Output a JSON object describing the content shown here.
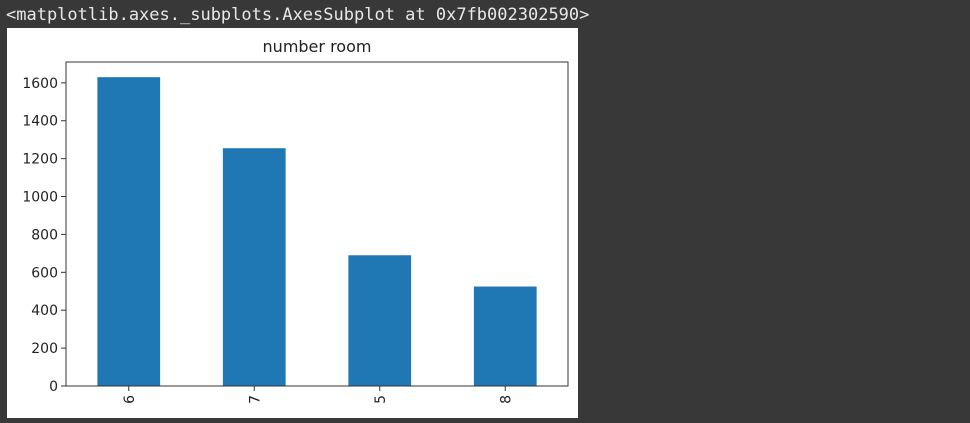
{
  "output": {
    "repr": "<matplotlib.axes._subplots.AxesSubplot at 0x7fb002302590>"
  },
  "chart_data": {
    "type": "bar",
    "title": "number room",
    "xlabel": "",
    "ylabel": "",
    "categories": [
      "6",
      "7",
      "5",
      "8"
    ],
    "values": [
      1630,
      1255,
      690,
      525
    ],
    "ylim": [
      0,
      1710
    ],
    "yticks": [
      0,
      200,
      400,
      600,
      800,
      1000,
      1200,
      1400,
      1600
    ],
    "x_tick_rotation": 90,
    "grid": false,
    "bar_color": "#1f77b4"
  }
}
